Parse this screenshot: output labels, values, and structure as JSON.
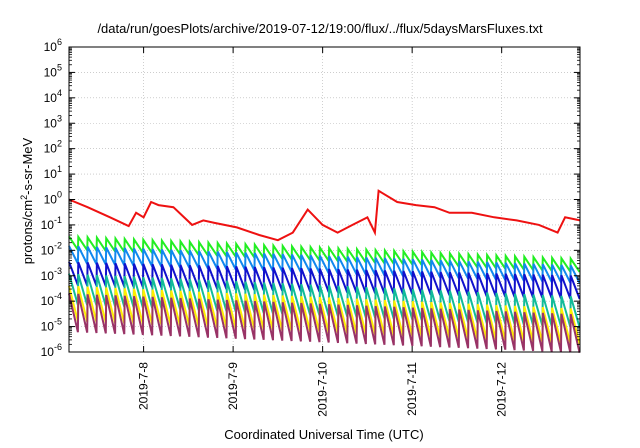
{
  "chart_data": {
    "type": "line",
    "title": "/data/run/goesPlots/archive/2019-07-12/19:00/flux/../flux/5daysMarsFluxes.txt",
    "xlabel": "Coordinated Universal Time (UTC)",
    "ylabel": {
      "pre": "protons/cm",
      "sup": "2",
      "post": "-s-sr-MeV"
    },
    "yscale": "log",
    "ylim": [
      1e-06,
      1000000.0
    ],
    "y_ticks": [
      {
        "base": "10",
        "exp": "-6"
      },
      {
        "base": "10",
        "exp": "-5"
      },
      {
        "base": "10",
        "exp": "-4"
      },
      {
        "base": "10",
        "exp": "-3"
      },
      {
        "base": "10",
        "exp": "-2"
      },
      {
        "base": "10",
        "exp": "-1"
      },
      {
        "base": "10",
        "exp": "0"
      },
      {
        "base": "10",
        "exp": "1"
      },
      {
        "base": "10",
        "exp": "2"
      },
      {
        "base": "10",
        "exp": "3"
      },
      {
        "base": "10",
        "exp": "4"
      },
      {
        "base": "10",
        "exp": "5"
      },
      {
        "base": "10",
        "exp": "6"
      }
    ],
    "x_range": [
      "2019-07-07T04:00",
      "2019-07-12T21:00"
    ],
    "x_ticks": [
      "2019-7-8",
      "2019-7-9",
      "2019-7-10",
      "2019-7-11",
      "2019-7-12"
    ],
    "grid": true,
    "series": [
      {
        "color": "#ee1111",
        "x": [
          "2019-07-07T04:00",
          "2019-07-07T09:00",
          "2019-07-07T15:00",
          "2019-07-07T20:00",
          "2019-07-07T22:00",
          "2019-07-08T00:00",
          "2019-07-08T02:00",
          "2019-07-08T04:00",
          "2019-07-08T08:00",
          "2019-07-08T13:00",
          "2019-07-08T16:00",
          "2019-07-08T19:00",
          "2019-07-09T01:00",
          "2019-07-09T07:00",
          "2019-07-09T12:00",
          "2019-07-09T16:00",
          "2019-07-09T20:00",
          "2019-07-10T00:00",
          "2019-07-10T04:00",
          "2019-07-10T08:00",
          "2019-07-10T12:00",
          "2019-07-10T14:00",
          "2019-07-10T15:00",
          "2019-07-10T20:00",
          "2019-07-11T01:00",
          "2019-07-11T06:00",
          "2019-07-11T10:00",
          "2019-07-11T16:00",
          "2019-07-11T22:00",
          "2019-07-12T04:00",
          "2019-07-12T10:00",
          "2019-07-12T15:00",
          "2019-07-12T17:00",
          "2019-07-12T21:00"
        ],
        "y": [
          1.0,
          0.5,
          0.2,
          0.09,
          0.3,
          0.2,
          0.8,
          0.6,
          0.5,
          0.1,
          0.15,
          0.12,
          0.08,
          0.04,
          0.025,
          0.05,
          0.4,
          0.1,
          0.05,
          0.1,
          0.2,
          0.05,
          2.2,
          0.8,
          0.6,
          0.5,
          0.3,
          0.3,
          0.2,
          0.15,
          0.1,
          0.05,
          0.2,
          0.15
        ]
      },
      {
        "color": "#22ee22",
        "sawtooth": {
          "peak_start": 0.035,
          "peak_end": 0.0045,
          "trough_ratio": 0.3,
          "teeth": 55
        }
      },
      {
        "color": "#1188ee",
        "sawtooth": {
          "peak_start": 0.015,
          "peak_end": 0.0025,
          "trough_ratio": 0.2,
          "teeth": 55
        }
      },
      {
        "color": "#1111cc",
        "sawtooth": {
          "peak_start": 0.0035,
          "peak_end": 0.001,
          "trough_ratio": 0.12,
          "teeth": 55
        }
      },
      {
        "color": "#11bb99",
        "sawtooth": {
          "peak_start": 0.0012,
          "peak_end": 0.00015,
          "trough_ratio": 0.06,
          "teeth": 55
        }
      },
      {
        "color": "#ffee00",
        "sawtooth": {
          "peak_start": 0.0004,
          "peak_end": 5e-05,
          "trough_ratio": 0.04,
          "teeth": 55
        }
      },
      {
        "color": "#993366",
        "sawtooth": {
          "peak_start": 0.0002,
          "peak_end": 3e-05,
          "trough_ratio": 0.03,
          "teeth": 55
        }
      }
    ]
  }
}
